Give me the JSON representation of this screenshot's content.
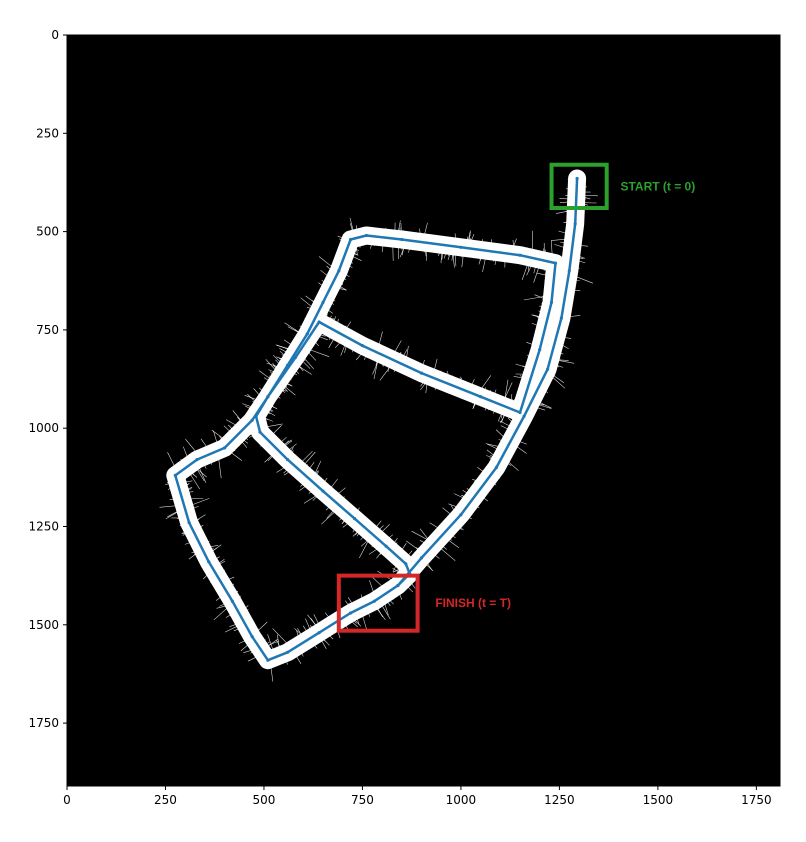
{
  "chart_data": {
    "type": "scatter",
    "title": "",
    "xlabel": "",
    "ylabel": "",
    "xlim": [
      0,
      1810
    ],
    "ylim": [
      1910,
      0
    ],
    "grid": false,
    "background_color": "#000000",
    "map_color": "#ffffff",
    "trajectory_color": "#1f77b4",
    "x_ticks": [
      0,
      250,
      500,
      750,
      1000,
      1250,
      1500,
      1750
    ],
    "y_ticks": [
      0,
      250,
      500,
      750,
      1000,
      1250,
      1500,
      1750
    ],
    "trajectory_segments": [
      {
        "name": "",
        "points": [
          [
            1295,
            365
          ],
          [
            1290,
            480
          ],
          [
            1275,
            600
          ],
          [
            1255,
            720
          ],
          [
            1220,
            850
          ],
          [
            1160,
            970
          ],
          [
            1090,
            1100
          ],
          [
            1000,
            1220
          ],
          [
            900,
            1330
          ],
          [
            840,
            1400
          ],
          [
            780,
            1440
          ],
          [
            720,
            1470
          ],
          [
            640,
            1520
          ],
          [
            560,
            1570
          ],
          [
            510,
            1590
          ],
          [
            470,
            1530
          ],
          [
            420,
            1440
          ],
          [
            360,
            1340
          ],
          [
            310,
            1240
          ],
          [
            275,
            1120
          ],
          [
            330,
            1080
          ],
          [
            400,
            1050
          ],
          [
            470,
            980
          ],
          [
            510,
            920
          ],
          [
            560,
            840
          ],
          [
            610,
            760
          ],
          [
            650,
            680
          ],
          [
            690,
            600
          ],
          [
            720,
            520
          ],
          [
            760,
            510
          ],
          [
            850,
            520
          ],
          [
            1000,
            540
          ],
          [
            1150,
            560
          ],
          [
            1240,
            580
          ],
          [
            1230,
            680
          ],
          [
            1200,
            800
          ],
          [
            1150,
            960
          ],
          [
            1050,
            920
          ],
          [
            900,
            860
          ],
          [
            750,
            790
          ],
          [
            640,
            730
          ],
          [
            580,
            820
          ],
          [
            510,
            920
          ],
          [
            480,
            970
          ],
          [
            490,
            1010
          ],
          [
            560,
            1080
          ],
          [
            650,
            1160
          ],
          [
            730,
            1230
          ],
          [
            810,
            1300
          ],
          [
            860,
            1345
          ],
          [
            870,
            1370
          ],
          [
            840,
            1400
          ]
        ]
      }
    ],
    "annotations": [
      {
        "text": "START (t = 0)",
        "color": "#2ca02c",
        "box": {
          "x0": 1230,
          "y0": 330,
          "x1": 1370,
          "y1": 440
        },
        "label_at": [
          1405,
          385
        ]
      },
      {
        "text": "FINISH (t = T)",
        "color": "#d62728",
        "box": {
          "x0": 690,
          "y0": 1375,
          "x1": 890,
          "y1": 1515
        },
        "label_at": [
          935,
          1445
        ]
      }
    ]
  }
}
